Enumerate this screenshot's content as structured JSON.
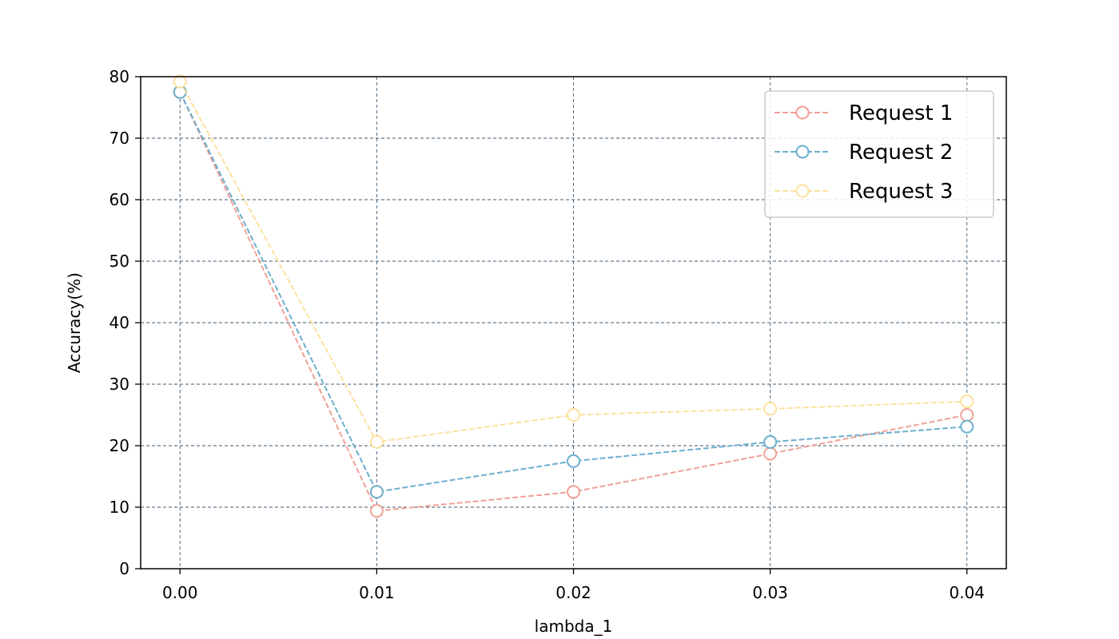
{
  "chart_data": {
    "type": "line",
    "title": "",
    "xlabel": "lambda_1",
    "ylabel": "Accuracy(%)",
    "x": [
      0.0,
      0.01,
      0.02,
      0.03,
      0.04
    ],
    "x_tick_labels": [
      "0.00",
      "0.01",
      "0.02",
      "0.03",
      "0.04"
    ],
    "y_ticks": [
      0,
      10,
      20,
      30,
      40,
      50,
      60,
      70,
      80
    ],
    "xlim": [
      -0.002,
      0.042
    ],
    "ylim": [
      0,
      80
    ],
    "grid": true,
    "legend_position": "top-right",
    "series": [
      {
        "name": "Request 1",
        "color": "#f0a097",
        "values": [
          77.5,
          9.4,
          12.5,
          18.7,
          25.0
        ]
      },
      {
        "name": "Request 2",
        "color": "#6aafcc",
        "values": [
          77.5,
          12.5,
          17.5,
          20.6,
          23.1
        ]
      },
      {
        "name": "Request 3",
        "color": "#fde19d",
        "values": [
          79.2,
          20.6,
          25.0,
          26.0,
          27.2
        ]
      }
    ]
  }
}
